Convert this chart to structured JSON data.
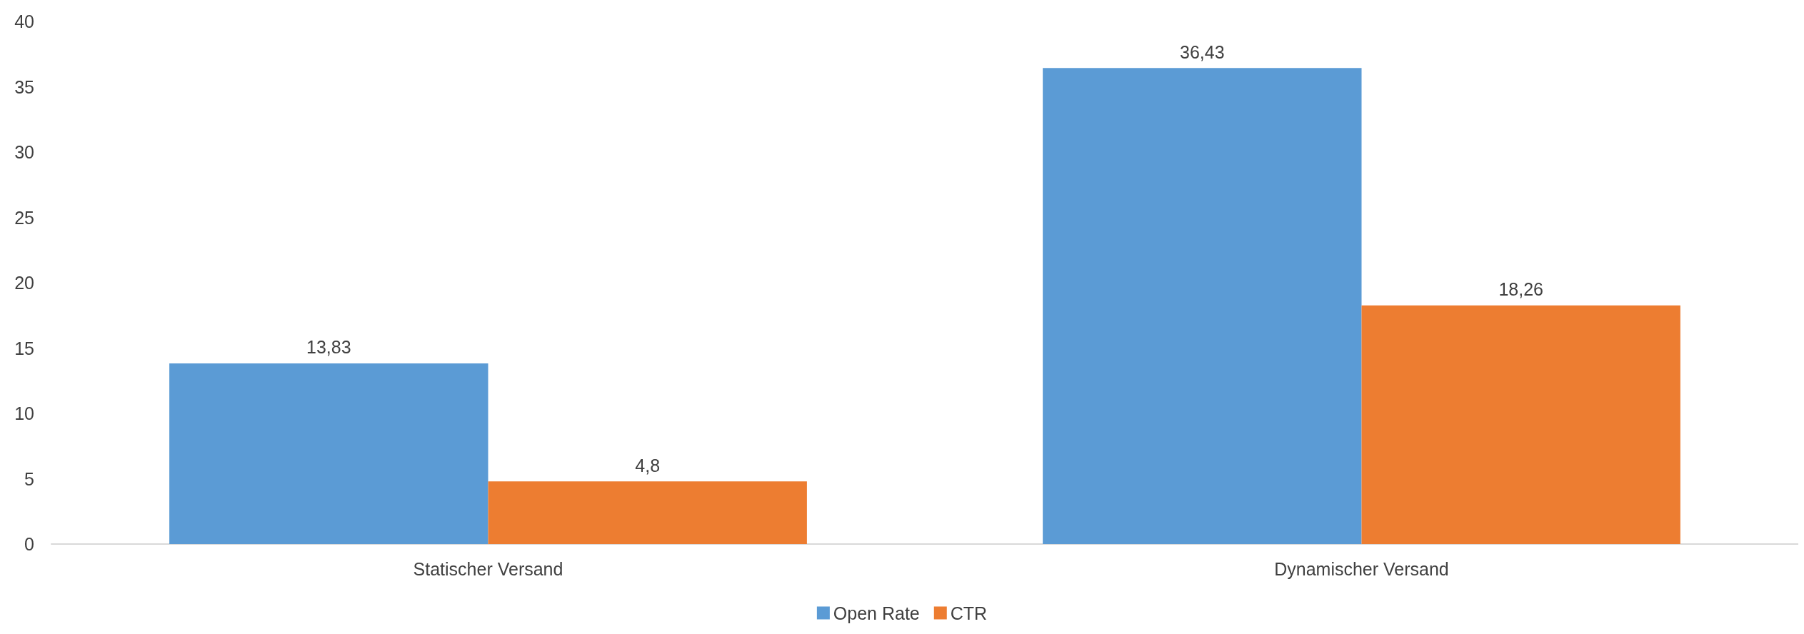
{
  "chart_data": {
    "type": "bar",
    "categories": [
      "Statischer Versand",
      "Dynamischer Versand"
    ],
    "series": [
      {
        "name": "Open Rate",
        "color": "#5b9bd5",
        "values": [
          13.83,
          36.43
        ],
        "value_labels": [
          "13,83",
          "36,43"
        ]
      },
      {
        "name": "CTR",
        "color": "#ed7d31",
        "values": [
          4.8,
          18.26
        ],
        "value_labels": [
          "4,8",
          "18,26"
        ]
      }
    ],
    "ylim": [
      0,
      40
    ],
    "yticks": [
      0,
      5,
      10,
      15,
      20,
      25,
      30,
      35,
      40
    ],
    "grid": false,
    "legend": "bottom"
  }
}
